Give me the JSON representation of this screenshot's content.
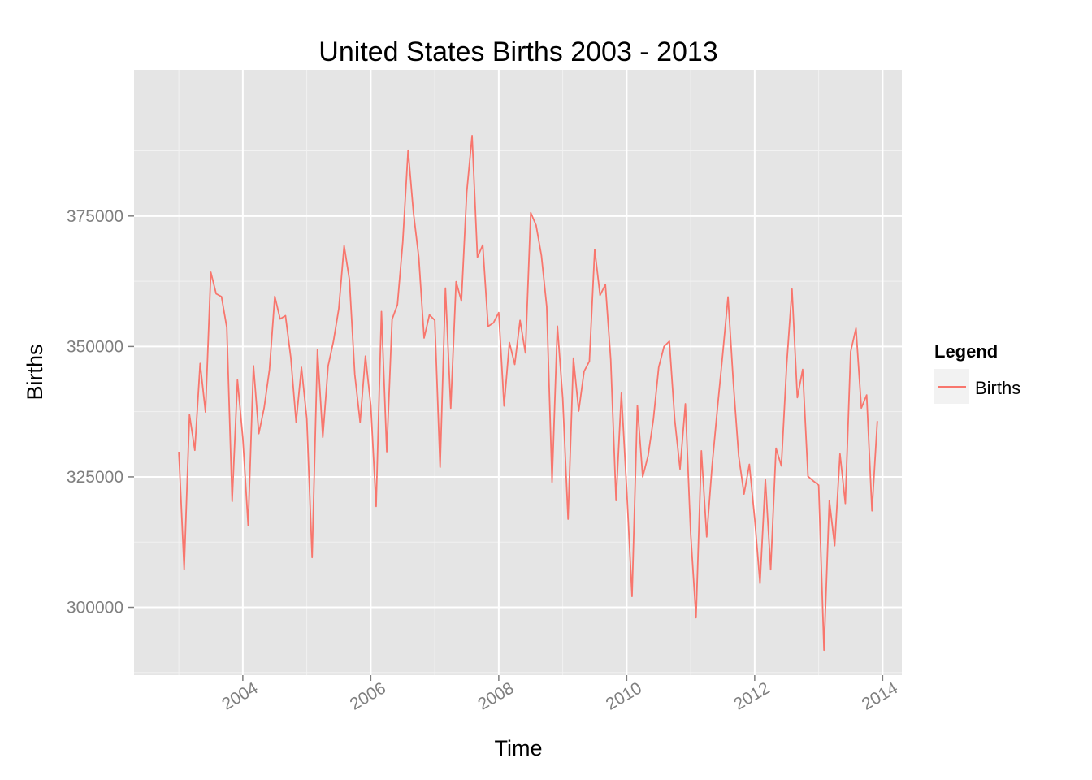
{
  "chart_data": {
    "type": "line",
    "title": "United States Births 2003 - 2013",
    "xlabel": "Time",
    "ylabel": "Births",
    "xlim": [
      2002.3,
      2014.3
    ],
    "ylim": [
      287000,
      403000
    ],
    "x_ticks": [
      2004,
      2006,
      2008,
      2010,
      2012,
      2014
    ],
    "x_tick_labels": [
      "2004",
      "2006",
      "2008",
      "2010",
      "2012",
      "2014"
    ],
    "y_ticks": [
      300000,
      325000,
      350000,
      375000
    ],
    "y_tick_labels": [
      "300000",
      "325000",
      "350000",
      "375000"
    ],
    "grid": true,
    "legend": {
      "title": "Legend",
      "position": "right",
      "entries": [
        "Births"
      ]
    },
    "series": [
      {
        "name": "Births",
        "color": "#F8766D",
        "x_start": 2003,
        "x_step_months": 1,
        "values": [
          329803,
          307248,
          336920,
          330106,
          346754,
          337425,
          364226,
          360102,
          359554,
          353618,
          320301,
          343593,
          332451,
          315689,
          346297,
          333295,
          338231,
          345572,
          359604,
          355271,
          355900,
          347896,
          335502,
          346002,
          336151,
          309545,
          349403,
          332587,
          346253,
          350994,
          357235,
          369323,
          362764,
          344637,
          335487,
          348154,
          338735,
          319326,
          356696,
          329826,
          355217,
          358006,
          370014,
          387627,
          375649,
          367116,
          351625,
          356047,
          355040,
          326845,
          361194,
          338178,
          362414,
          358709,
          379601,
          390399,
          367092,
          369442,
          353857,
          354520,
          356488,
          338598,
          350766,
          346551,
          354998,
          348764,
          375647,
          373247,
          367437,
          357625,
          323996,
          353885,
          340054,
          316907,
          347779,
          337613,
          345211,
          347172,
          368597,
          359811,
          361865,
          347474,
          320468,
          341059,
          322521,
          302079,
          338685,
          325000,
          329000,
          336000,
          346000,
          350000,
          351000,
          336000,
          326500,
          339000,
          314000,
          298000,
          330000,
          313500,
          327000,
          338000,
          348500,
          359500,
          343000,
          329000,
          321700,
          327400,
          317000,
          304600,
          324500,
          307200,
          330500,
          327100,
          346500,
          361000,
          340200,
          345600,
          325100,
          324200,
          323400,
          291800,
          320500,
          311800,
          329400,
          319900,
          349000,
          353500,
          338200,
          340700,
          318500,
          335700
        ]
      }
    ]
  }
}
